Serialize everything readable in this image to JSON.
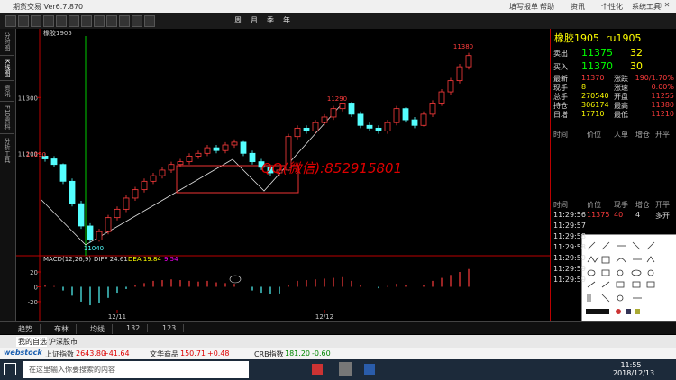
{
  "window": {
    "title": "期货交易 Ver6.7.870",
    "menu": [
      "填写报单",
      "帮助",
      "资讯",
      "个性化",
      "系统工具"
    ]
  },
  "toolbar": [
    "周",
    "月",
    "季",
    "年"
  ],
  "side_tabs": [
    "分时图",
    "K线图",
    "资讯",
    "F10资料",
    "分析工具"
  ],
  "chart_data": {
    "type": "candlestick",
    "title": "橡胶1905",
    "up_color": "#ff3c3c",
    "down_color": "#54ffff",
    "ylim": [
      11020,
      11410
    ],
    "yticks": [
      11200,
      11300
    ],
    "categories": [
      null,
      null,
      null,
      null,
      null,
      null,
      null,
      null,
      "12/11",
      null,
      null,
      null,
      null,
      null,
      null,
      null,
      null,
      null,
      null,
      null,
      null,
      null,
      null,
      null,
      null,
      null,
      null,
      null,
      null,
      null,
      null,
      "12/12",
      null,
      null,
      null,
      null,
      null,
      null,
      null,
      null,
      null,
      null,
      null,
      null,
      null,
      null,
      null,
      null
    ],
    "candles": [
      [
        11195,
        11200,
        11185,
        11190
      ],
      [
        11190,
        11195,
        11175,
        11180
      ],
      [
        11180,
        11182,
        11145,
        11150
      ],
      [
        11150,
        11155,
        11105,
        11110
      ],
      [
        11110,
        11115,
        11065,
        11070
      ],
      [
        11070,
        11075,
        11040,
        11045
      ],
      [
        11045,
        11065,
        11042,
        11060
      ],
      [
        11060,
        11090,
        11055,
        11085
      ],
      [
        11085,
        11105,
        11080,
        11100
      ],
      [
        11100,
        11125,
        11095,
        11120
      ],
      [
        11120,
        11140,
        11115,
        11135
      ],
      [
        11135,
        11155,
        11130,
        11150
      ],
      [
        11150,
        11165,
        11145,
        11160
      ],
      [
        11160,
        11175,
        11155,
        11170
      ],
      [
        11170,
        11185,
        11165,
        11180
      ],
      [
        11180,
        11190,
        11175,
        11185
      ],
      [
        11185,
        11200,
        11180,
        11195
      ],
      [
        11195,
        11205,
        11190,
        11200
      ],
      [
        11200,
        11215,
        11195,
        11210
      ],
      [
        11210,
        11215,
        11200,
        11205
      ],
      [
        11205,
        11220,
        11200,
        11215
      ],
      [
        11215,
        11225,
        11210,
        11220
      ],
      [
        11220,
        11222,
        11195,
        11200
      ],
      [
        11200,
        11205,
        11180,
        11185
      ],
      [
        11185,
        11190,
        11170,
        11175
      ],
      [
        11175,
        11180,
        11160,
        11165
      ],
      [
        11165,
        11175,
        11160,
        11170
      ],
      [
        11170,
        11235,
        11168,
        11230
      ],
      [
        11230,
        11250,
        11225,
        11245
      ],
      [
        11245,
        11250,
        11235,
        11240
      ],
      [
        11240,
        11260,
        11235,
        11255
      ],
      [
        11255,
        11270,
        11250,
        11265
      ],
      [
        11265,
        11285,
        11260,
        11280
      ],
      [
        11280,
        11290,
        11275,
        11290
      ],
      [
        11290,
        11292,
        11265,
        11270
      ],
      [
        11270,
        11275,
        11245,
        11250
      ],
      [
        11250,
        11255,
        11240,
        11245
      ],
      [
        11245,
        11250,
        11235,
        11240
      ],
      [
        11240,
        11260,
        11235,
        11255
      ],
      [
        11255,
        11285,
        11250,
        11280
      ],
      [
        11280,
        11282,
        11255,
        11260
      ],
      [
        11260,
        11265,
        11245,
        11250
      ],
      [
        11250,
        11275,
        11248,
        11270
      ],
      [
        11270,
        11295,
        11265,
        11290
      ],
      [
        11290,
        11315,
        11285,
        11310
      ],
      [
        11310,
        11335,
        11305,
        11330
      ],
      [
        11330,
        11360,
        11325,
        11355
      ],
      [
        11355,
        11380,
        11350,
        11375
      ]
    ],
    "annotations": [
      "11380",
      "11290",
      "11190",
      "11040",
      "QQ(微信):852915801"
    ],
    "indicator": {
      "label": "MACD(12,26,9)",
      "diff": "DIFF 24.61",
      "dea": "DEA 19.84",
      "macd": "9.54",
      "ylim": [
        -31,
        37
      ],
      "yticks": [
        -20,
        0,
        20
      ],
      "values": [
        2,
        1,
        -5,
        -12,
        -20,
        -25,
        -22,
        -15,
        -8,
        -3,
        2,
        5,
        8,
        9,
        10,
        9,
        8,
        7,
        8,
        6,
        5,
        4,
        0,
        -5,
        -8,
        -10,
        -9,
        2,
        8,
        9,
        10,
        11,
        12,
        13,
        8,
        3,
        0,
        -2,
        1,
        4,
        2,
        0,
        3,
        8,
        12,
        16,
        20,
        24
      ]
    }
  },
  "quote": {
    "title": "橡胶1905",
    "code": "ru1905",
    "book": [
      [
        "卖出",
        11375,
        32
      ],
      [
        "买入",
        11370,
        30
      ]
    ],
    "rows": [
      [
        "最新",
        11370,
        "涨跌",
        "190/1.70%"
      ],
      [
        "现手",
        8,
        "涨速",
        "0.00%"
      ],
      [
        "总手",
        270540,
        "开盘",
        11255
      ],
      [
        "持仓",
        306174,
        "最高",
        11380
      ],
      [
        "日增",
        17710,
        "最低",
        11210
      ]
    ],
    "trade_header": [
      "时间",
      "价位",
      "人单",
      "增仓",
      "开平"
    ],
    "tick_header": [
      "时间",
      "价位",
      "现手",
      "增仓",
      "开平"
    ],
    "ticks": [
      [
        "11:29:56",
        11375,
        40,
        4,
        "多开"
      ]
    ],
    "tick_times": [
      "11:29:57",
      "11:29:58",
      "11:29:58",
      "11:29:59",
      "11:29:59",
      "11:29:59"
    ]
  },
  "bottom_tabs": [
    "趋势",
    "布林",
    "均线",
    "132",
    "123"
  ],
  "my_tabs": [
    "我的自选",
    "沪深股市"
  ],
  "ticker": {
    "brand": "webstock",
    "items": [
      [
        "上证指数",
        "2643.80",
        "+41.64"
      ],
      [
        "文华商品",
        "150.71",
        "+0.48"
      ],
      [
        "CRB指数",
        "181.20",
        "-0.60"
      ]
    ]
  },
  "taskbar": {
    "search": "在这里输入你要搜索的内容",
    "time": "11:55",
    "date": "2018/12/13"
  }
}
